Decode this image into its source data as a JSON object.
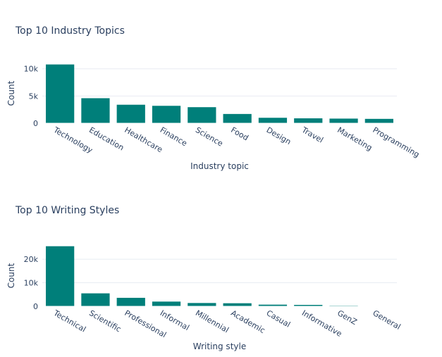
{
  "chart_data": [
    {
      "type": "bar",
      "title": "Top 10 Industry Topics",
      "xlabel": "Industry topic",
      "ylabel": "Count",
      "categories": [
        "Technology",
        "Education",
        "Healthcare",
        "Finance",
        "Science",
        "Food",
        "Design",
        "Travel",
        "Marketing",
        "Programming"
      ],
      "values": [
        10800,
        4600,
        3400,
        3200,
        2950,
        1700,
        1000,
        900,
        850,
        800
      ],
      "ylim": [
        0,
        11000
      ],
      "yticks": [
        0,
        5000,
        10000
      ],
      "ytick_labels": [
        "0",
        "5k",
        "10k"
      ],
      "grid": true,
      "color": "#007f7a"
    },
    {
      "type": "bar",
      "title": "Top 10 Writing Styles",
      "xlabel": "Writing style",
      "ylabel": "Count",
      "categories": [
        "Technical",
        "Scientific",
        "Professional",
        "Informal",
        "Millennial",
        "Academic",
        "Casual",
        "Informative",
        "GenZ",
        "General"
      ],
      "values": [
        25500,
        5500,
        3600,
        2000,
        1400,
        1300,
        700,
        600,
        250,
        150
      ],
      "ylim": [
        0,
        26000
      ],
      "yticks": [
        0,
        10000,
        20000
      ],
      "ytick_labels": [
        "0",
        "10k",
        "20k"
      ],
      "grid": true,
      "color": "#007f7a"
    }
  ]
}
